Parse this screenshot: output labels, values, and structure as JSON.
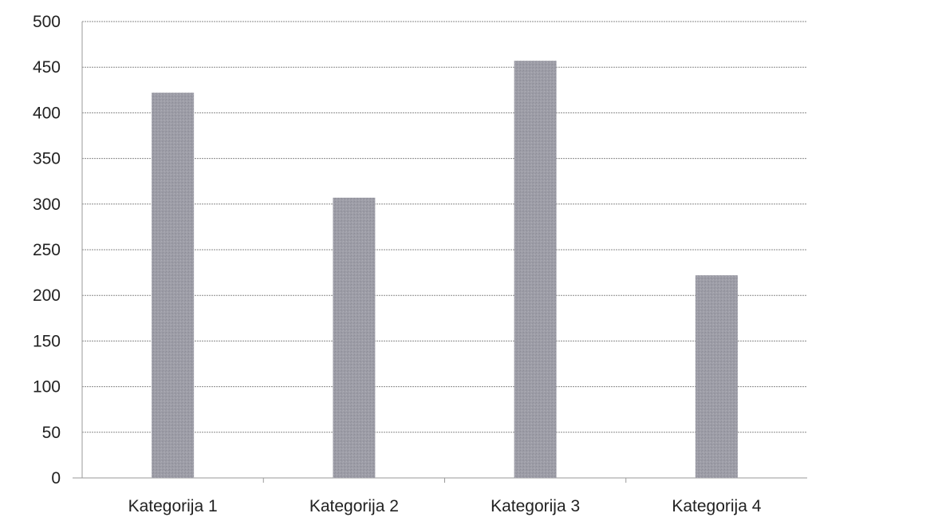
{
  "chart_data": {
    "type": "bar",
    "title": "",
    "xlabel": "",
    "ylabel": "",
    "categories": [
      "Kategorija 1",
      "Kategorija 2",
      "Kategorija 3",
      "Kategorija 4"
    ],
    "series": [
      {
        "values": [
          422,
          307,
          457,
          222
        ]
      }
    ],
    "ylim": [
      0,
      500
    ],
    "yticks": [
      0,
      50,
      100,
      150,
      200,
      250,
      300,
      350,
      400,
      450,
      500
    ],
    "ytick_labels": [
      "0",
      "50",
      "100",
      "150",
      "200",
      "250",
      "300",
      "350",
      "400",
      "450",
      "500"
    ],
    "grid": true,
    "legend": "none",
    "colors": {
      "bar": "#9c9ca6",
      "grid": "#8a8a8a",
      "text": "#222222"
    }
  }
}
